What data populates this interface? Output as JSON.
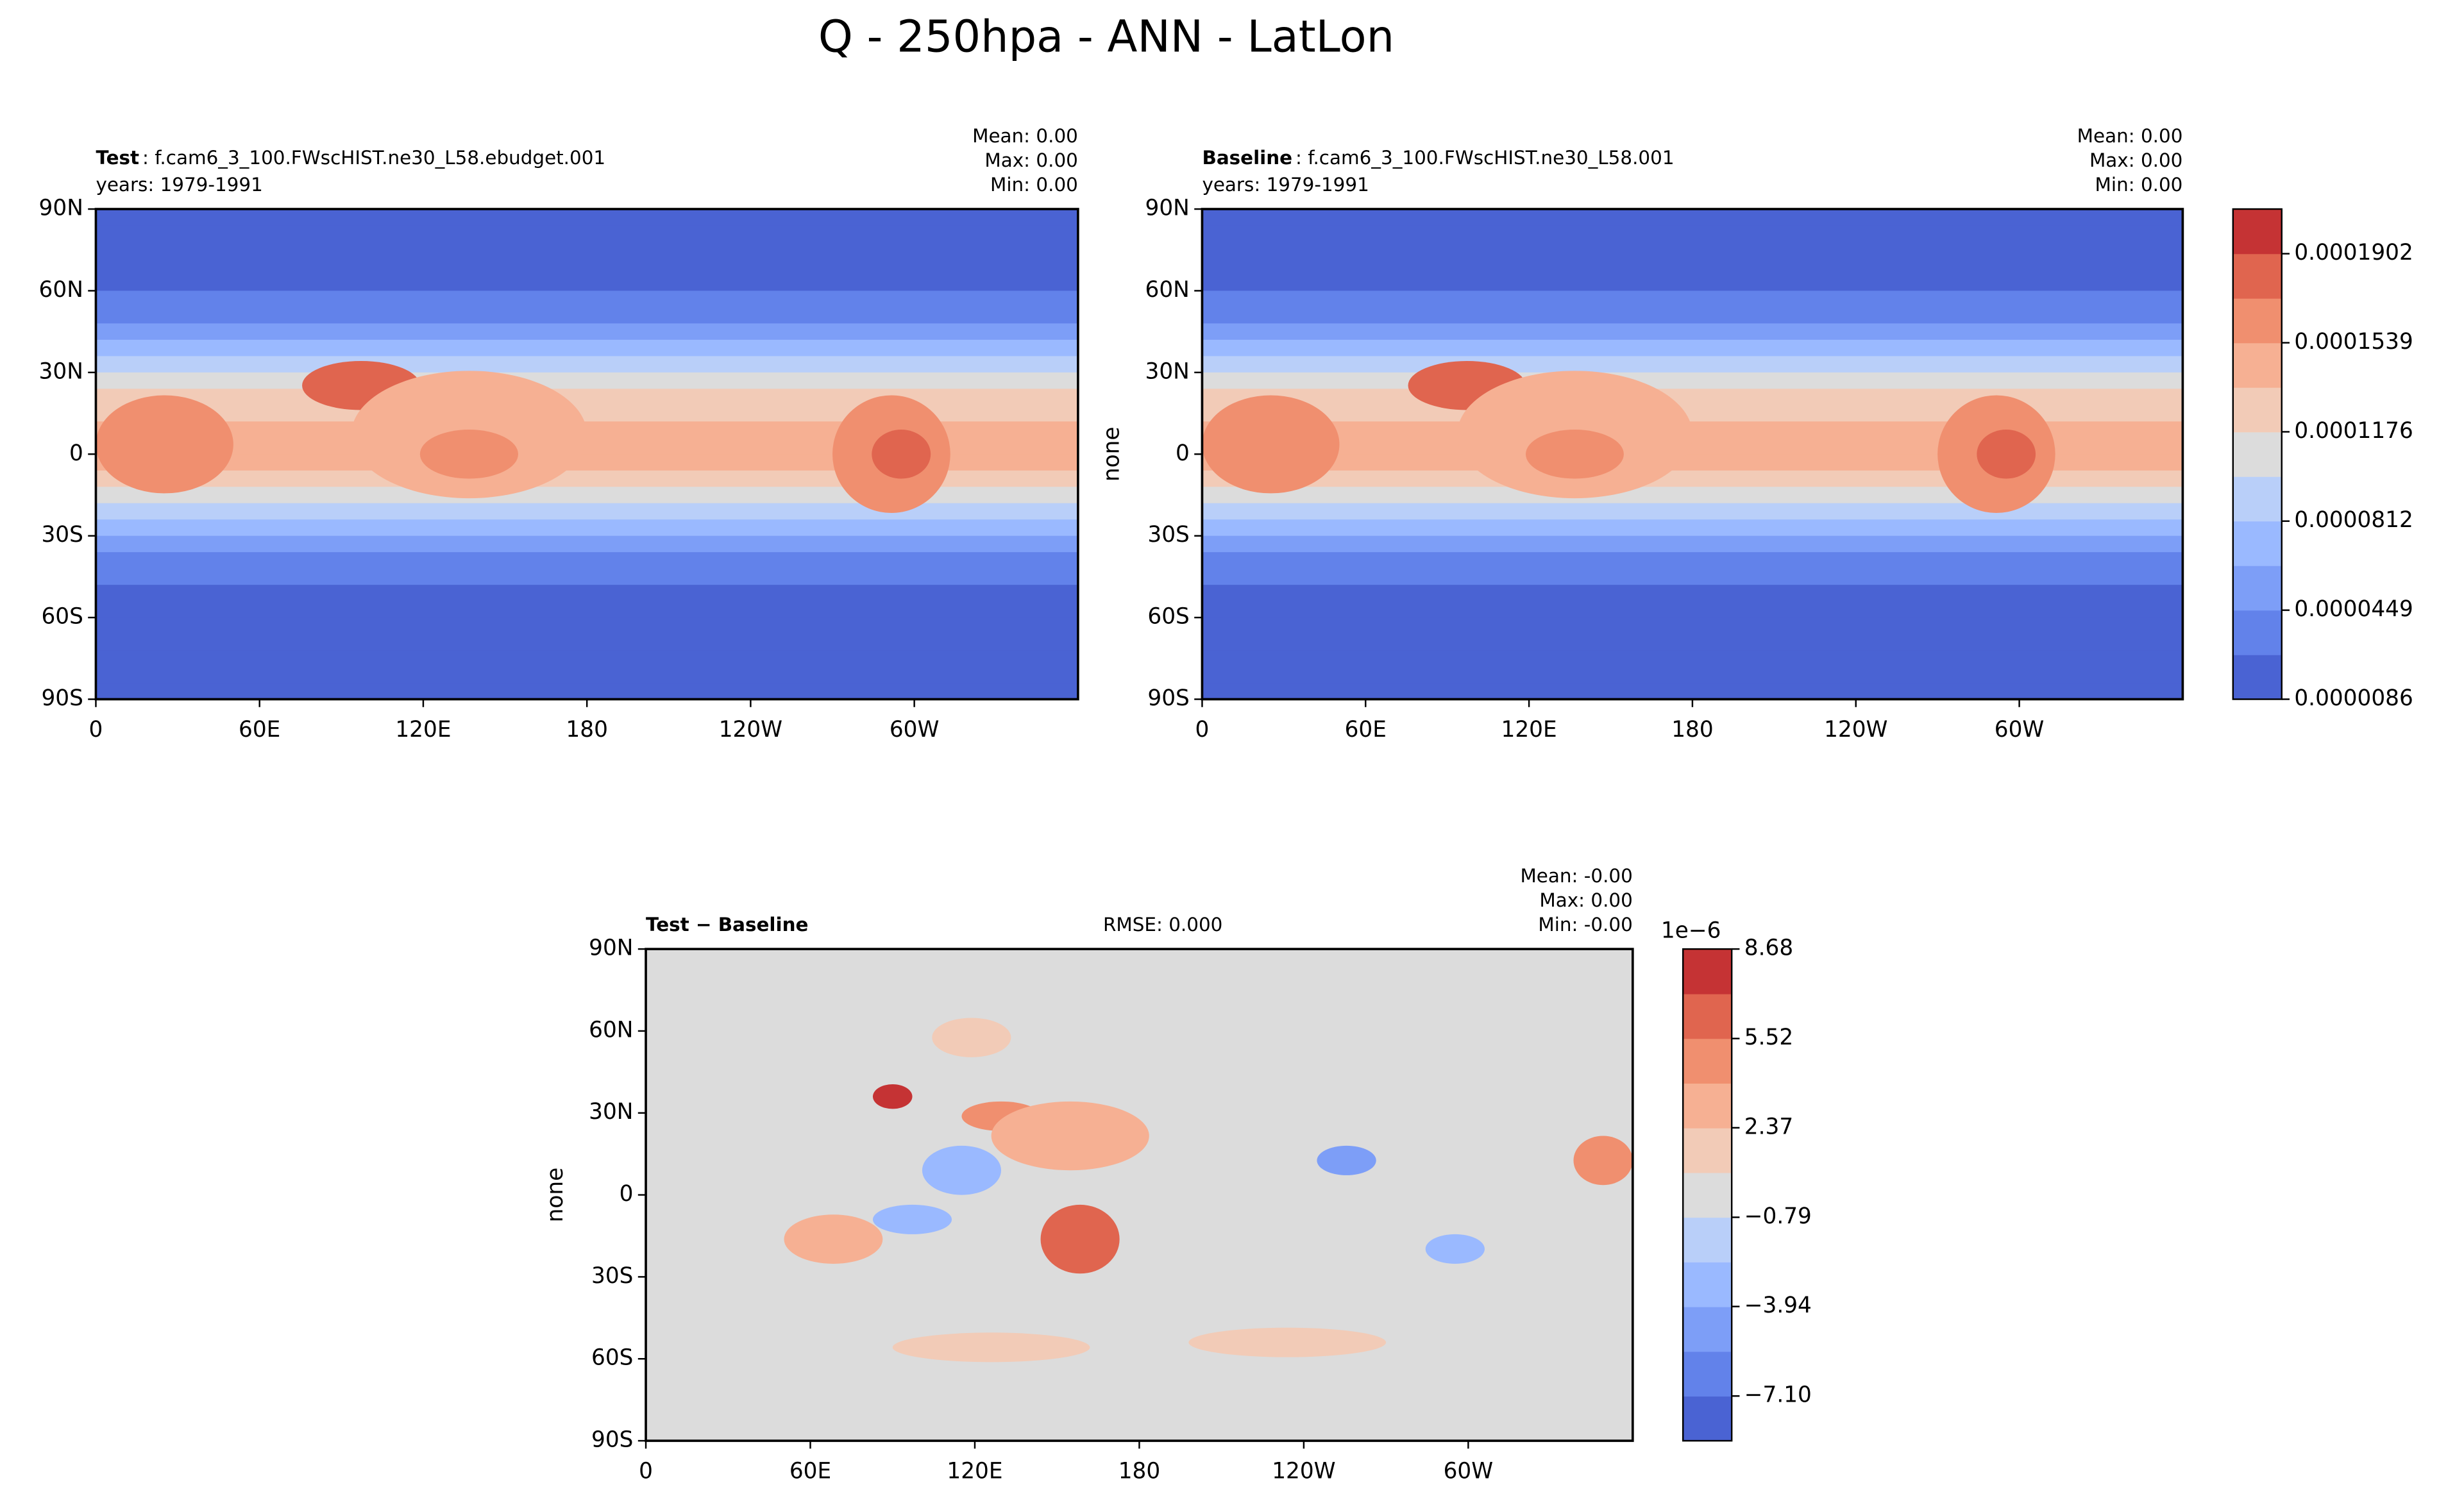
{
  "title": "Q - 250hpa - ANN - LatLon",
  "chart_data": [
    {
      "type": "contourf",
      "name": "Test",
      "subtitle": ": f.cam6_3_100.FWscHIST.ne30_L58.ebudget.001",
      "years": "years: 1979-1991",
      "stats": [
        "Mean:  0.00",
        "Max:  0.00",
        "Min:  0.00"
      ],
      "xlim": [
        0,
        360
      ],
      "xticks": [
        0,
        {
          "value": 60,
          "label": "60E"
        },
        {
          "value": 120,
          "label": "120E"
        },
        180,
        {
          "value": 240,
          "label": "120W"
        },
        {
          "value": 300,
          "label": "60W"
        }
      ],
      "ylim": [
        -90,
        90
      ],
      "yticks": [
        {
          "value": -90,
          "label": "90S"
        },
        {
          "value": -60,
          "label": "60S"
        },
        {
          "value": -30,
          "label": "30S"
        },
        0,
        {
          "value": 30,
          "label": "30N"
        },
        {
          "value": 60,
          "label": "60N"
        },
        {
          "value": 90,
          "label": "90N"
        }
      ]
    },
    {
      "type": "contourf",
      "name": "Baseline",
      "subtitle": ": f.cam6_3_100.FWscHIST.ne30_L58.001",
      "years": "years: 1979-1991",
      "ylabel": "none",
      "stats": [
        "Mean:  0.00",
        "Max:  0.00",
        "Min:  0.00"
      ],
      "xlim": [
        0,
        360
      ],
      "xticks": [
        0,
        {
          "value": 60,
          "label": "60E"
        },
        {
          "value": 120,
          "label": "120E"
        },
        180,
        {
          "value": 240,
          "label": "120W"
        },
        {
          "value": 300,
          "label": "60W"
        }
      ],
      "ylim": [
        -90,
        90
      ],
      "yticks": [
        {
          "value": -90,
          "label": "90S"
        },
        {
          "value": -60,
          "label": "60S"
        },
        {
          "value": -30,
          "label": "30S"
        },
        0,
        {
          "value": 30,
          "label": "30N"
        },
        {
          "value": 60,
          "label": "60N"
        },
        {
          "value": 90,
          "label": "90N"
        }
      ],
      "colorbar": {
        "clim": [
          8.6e-06,
          0.0002084
        ],
        "ticks": [
          {
            "value": 8.6e-06,
            "label": "0.0000086"
          },
          {
            "value": 4.49e-05,
            "label": "0.0000449"
          },
          {
            "value": 8.12e-05,
            "label": "0.0000812"
          },
          {
            "value": 0.0001176,
            "label": "0.0001176"
          },
          {
            "value": 0.0001539,
            "label": "0.0001539"
          },
          {
            "value": 0.0001902,
            "label": "0.0001902"
          }
        ],
        "colors": [
          "#4a63d3",
          "#6282ea",
          "#7d9ef7",
          "#9ab9ff",
          "#b9cff9",
          "#dcdcdc",
          "#f2cbb7",
          "#f6b093",
          "#f08f6f",
          "#e0654f",
          "#c53334"
        ]
      }
    },
    {
      "type": "contourf",
      "name": "Test − Baseline",
      "rmse": "RMSE: 0.000",
      "ylabel": "none",
      "stats": [
        "Mean: -0.00",
        "Max:  0.00",
        "Min: -0.00"
      ],
      "xlim": [
        0,
        360
      ],
      "xticks": [
        0,
        {
          "value": 60,
          "label": "60E"
        },
        {
          "value": 120,
          "label": "120E"
        },
        180,
        {
          "value": 240,
          "label": "120W"
        },
        {
          "value": 300,
          "label": "60W"
        }
      ],
      "ylim": [
        -90,
        90
      ],
      "yticks": [
        {
          "value": -90,
          "label": "90S"
        },
        {
          "value": -60,
          "label": "60S"
        },
        {
          "value": -30,
          "label": "30S"
        },
        0,
        {
          "value": 30,
          "label": "30N"
        },
        {
          "value": 60,
          "label": "60N"
        },
        {
          "value": 90,
          "label": "90N"
        }
      ],
      "colorbar": {
        "clim": [
          -8.68,
          8.68
        ],
        "offset": "1e−6",
        "ticks": [
          {
            "value": -7.1,
            "label": "−7.10"
          },
          {
            "value": -3.94,
            "label": "−3.94"
          },
          {
            "value": -0.79,
            "label": "−0.79"
          },
          {
            "value": 2.37,
            "label": "2.37"
          },
          {
            "value": 5.52,
            "label": "5.52"
          },
          {
            "value": 8.68,
            "label": "8.68"
          }
        ],
        "colors": [
          "#4a63d3",
          "#6282ea",
          "#7d9ef7",
          "#9ab9ff",
          "#b9cff9",
          "#dcdcdc",
          "#f2cbb7",
          "#f6b093",
          "#f08f6f",
          "#e0654f",
          "#c53334"
        ]
      }
    }
  ]
}
